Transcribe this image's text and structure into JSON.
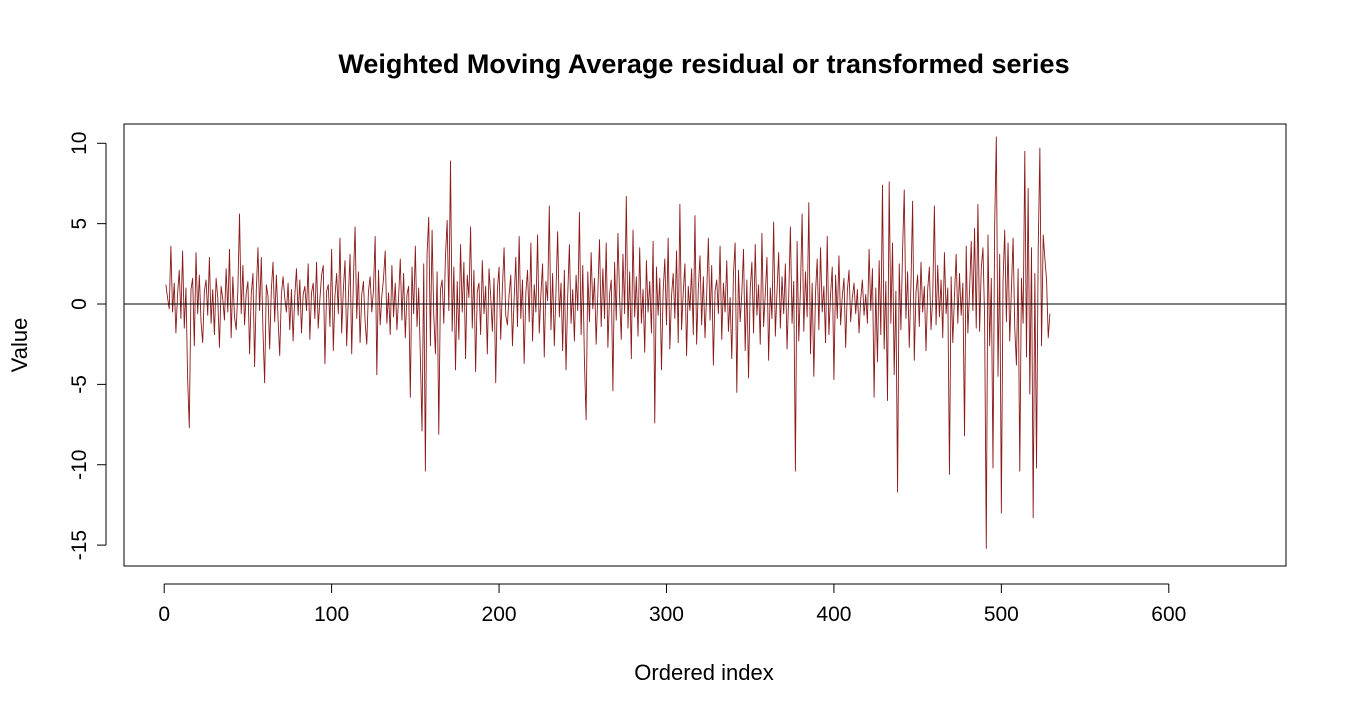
{
  "chart_data": {
    "type": "line",
    "title": "Weighted Moving Average residual or transformed series",
    "xlabel": "Ordered index",
    "ylabel": "Value",
    "xlim": [
      -24,
      670
    ],
    "ylim": [
      -16.3,
      11.2
    ],
    "x_ticks": [
      0,
      100,
      200,
      300,
      400,
      500,
      600
    ],
    "y_ticks": [
      -15,
      -10,
      -5,
      0,
      5,
      10
    ],
    "reference_line": 0,
    "grid": false,
    "series": [
      {
        "color": "#8B1A1A",
        "x_start": 1,
        "values": [
          1.2,
          0.4,
          -0.3,
          3.6,
          -0.5,
          1.3,
          -1.8,
          0.6,
          2.1,
          -0.9,
          3.3,
          -1.5,
          1.0,
          -4.6,
          -7.7,
          0.9,
          1.6,
          -2.6,
          3.2,
          -0.6,
          1.8,
          -1.1,
          -2.4,
          0.8,
          1.5,
          -0.7,
          2.9,
          -1.2,
          0.9,
          -1.9,
          1.6,
          0.4,
          -2.7,
          1.1,
          0.3,
          -1.0,
          2.2,
          -0.5,
          3.4,
          -2.1,
          1.7,
          -0.8,
          -1.6,
          0.9,
          5.6,
          -0.6,
          2.4,
          -1.3,
          0.7,
          1.4,
          -3.1,
          0.6,
          1.9,
          -3.9,
          0.8,
          3.5,
          -0.4,
          2.9,
          -1.7,
          -4.9,
          1.2,
          0.5,
          -2.8,
          0.9,
          2.6,
          -1.1,
          1.8,
          -0.9,
          -3.2,
          0.6,
          1.7,
          0.4,
          -0.5,
          1.3,
          -1.6,
          0.9,
          -2.3,
          0.5,
          2.2,
          -0.7,
          1.5,
          -1.8,
          0.6,
          1.1,
          -0.4,
          2.5,
          -2.2,
          0.7,
          1.3,
          -0.9,
          2.6,
          -1.5,
          0.3,
          1.8,
          2.4,
          -3.7,
          0.8,
          1.2,
          -1.4,
          3.4,
          -2.9,
          0.5,
          1.9,
          -0.6,
          4.1,
          -1.8,
          0.9,
          2.7,
          -2.6,
          0.4,
          3.1,
          -3.1,
          1.5,
          4.8,
          -0.9,
          2.0,
          -2.4,
          0.6,
          1.4,
          -1.1,
          -2.5,
          0.8,
          1.7,
          -0.5,
          0.9,
          4.2,
          -4.4,
          2.1,
          -1.3,
          0.5,
          1.6,
          3.3,
          -1.2,
          0.7,
          -1.9,
          2.4,
          -0.8,
          1.3,
          -1.6,
          0.4,
          2.8,
          -1.0,
          1.9,
          -2.1,
          0.6,
          1.1,
          -5.8,
          2.3,
          -0.6,
          3.6,
          -1.4,
          1.0,
          -3.3,
          -7.9,
          2.5,
          -10.4,
          3.1,
          5.4,
          -2.6,
          4.6,
          -0.7,
          -3.1,
          2.0,
          -8.1,
          0.9,
          1.5,
          -1.2,
          3.0,
          5.2,
          -0.4,
          8.9,
          -1.7,
          2.3,
          -4.1,
          1.4,
          -2.2,
          3.7,
          -0.5,
          2.6,
          -3.4,
          1.8,
          0.4,
          4.8,
          -1.5,
          2.1,
          -4.2,
          0.8,
          1.3,
          -1.9,
          2.7,
          -0.6,
          1.1,
          -3.1,
          2.2,
          0.5,
          -1.7,
          1.6,
          -4.9,
          0.9,
          2.3,
          -2.2,
          1.0,
          3.5,
          -0.7,
          -1.3,
          0.6,
          1.8,
          -2.6,
          0.3,
          2.9,
          -1.4,
          4.2,
          -0.9,
          1.5,
          -3.7,
          0.7,
          2.1,
          -1.1,
          3.8,
          -2.3,
          1.2,
          -0.5,
          4.3,
          -1.8,
          0.6,
          2.5,
          -3.3,
          1.4,
          0.2,
          6.1,
          -1.6,
          1.9,
          -2.6,
          0.8,
          4.5,
          -0.8,
          1.3,
          -2.9,
          2.1,
          -4.1,
          0.5,
          3.7,
          -1.2,
          0.9,
          -2.3,
          1.8,
          -0.4,
          5.7,
          -1.9,
          2.4,
          -3.6,
          -7.2,
          2.0,
          -1.1,
          3.2,
          -0.3,
          1.6,
          -2.5,
          0.7,
          4.0,
          -1.4,
          2.2,
          -0.9,
          3.8,
          -2.7,
          0.6,
          1.5,
          -5.4,
          2.6,
          -1.0,
          4.4,
          0.4,
          -2.2,
          3.1,
          -0.6,
          6.7,
          -1.5,
          2.0,
          -3.4,
          4.6,
          -0.8,
          1.7,
          -2.0,
          3.5,
          -1.2,
          0.9,
          -3.0,
          2.7,
          -0.5,
          1.4,
          -1.8,
          3.9,
          -7.4,
          2.3,
          -0.7,
          1.6,
          -4.1,
          0.8,
          2.8,
          -1.3,
          4.1,
          -2.8,
          0.5,
          1.9,
          -0.9,
          3.3,
          -2.4,
          6.2,
          -1.6,
          0.7,
          2.5,
          -3.2,
          1.1,
          -0.4,
          2.2,
          -1.9,
          5.5,
          -2.5,
          0.9,
          3.0,
          -1.3,
          1.7,
          -2.1,
          0.6,
          4.1,
          -1.0,
          2.4,
          -3.8,
          0.8,
          1.5,
          -0.6,
          3.6,
          -2.2,
          1.3,
          -0.5,
          2.7,
          -1.7,
          0.4,
          -3.4,
          1.9,
          3.8,
          -5.5,
          2.1,
          -1.1,
          0.7,
          3.4,
          -2.9,
          1.5,
          -4.6,
          0.9,
          2.6,
          -1.8,
          3.7,
          -0.7,
          1.2,
          -2.5,
          4.4,
          -1.4,
          0.6,
          2.9,
          -3.5,
          1.0,
          -0.9,
          5.1,
          -2.0,
          0.8,
          3.2,
          -1.5,
          1.7,
          -0.6,
          2.5,
          -2.8,
          0.5,
          4.8,
          -1.2,
          1.4,
          -10.4,
          3.9,
          -2.3,
          0.9,
          5.6,
          -1.7,
          2.0,
          -0.8,
          6.3,
          -3.1,
          1.3,
          -4.5,
          0.7,
          2.8,
          -1.6,
          3.5,
          -0.5,
          1.1,
          -2.4,
          4.2,
          -1.9,
          0.6,
          2.3,
          -4.7,
          1.8,
          -0.9,
          3.0,
          -1.3,
          0.5,
          1.6,
          -2.7,
          0.8,
          2.1,
          -1.1,
          0.4,
          1.3,
          -0.6,
          0.9,
          -1.8,
          0.3,
          1.5,
          -0.7,
          0.6,
          -1.2,
          3.4,
          -0.4,
          2.2,
          -5.8,
          1.0,
          -3.6,
          2.7,
          -1.9,
          7.4,
          -2.8,
          1.4,
          -6.0,
          7.6,
          -1.2,
          3.8,
          -4.4,
          0.8,
          -11.7,
          2.5,
          -1.6,
          3.3,
          7.1,
          -0.9,
          2.0,
          -2.7,
          1.2,
          6.4,
          -3.5,
          0.7,
          1.8,
          -1.4,
          2.6,
          -0.5,
          1.1,
          -2.9,
          0.9,
          2.3,
          -1.6,
          0.4,
          6.1,
          -1.3,
          2.4,
          -0.8,
          1.5,
          -2.1,
          3.2,
          -0.6,
          1.0,
          -10.6,
          1.7,
          -2.4,
          0.5,
          3.1,
          -1.2,
          1.9,
          -0.7,
          1.3,
          -8.2,
          3.6,
          -1.8,
          0.8,
          3.9,
          -0.4,
          4.7,
          -1.5,
          6.2,
          -1.7,
          2.2,
          3.5,
          -0.9,
          -15.2,
          4.3,
          -2.6,
          1.6,
          -10.2,
          4.9,
          10.4,
          -4.5,
          3.1,
          -13.0,
          1.4,
          4.6,
          -1.1,
          3.8,
          -2.3,
          0.9,
          4.1,
          -1.5,
          -3.8,
          2.2,
          -10.4,
          1.6,
          -1.2,
          9.5,
          -3.3,
          7.2,
          -5.6,
          3.5,
          -13.3,
          1.9,
          -10.2,
          3.4,
          9.7,
          -2.6,
          4.3,
          2.8,
          1.5,
          -2.1,
          -0.6
        ]
      }
    ]
  }
}
